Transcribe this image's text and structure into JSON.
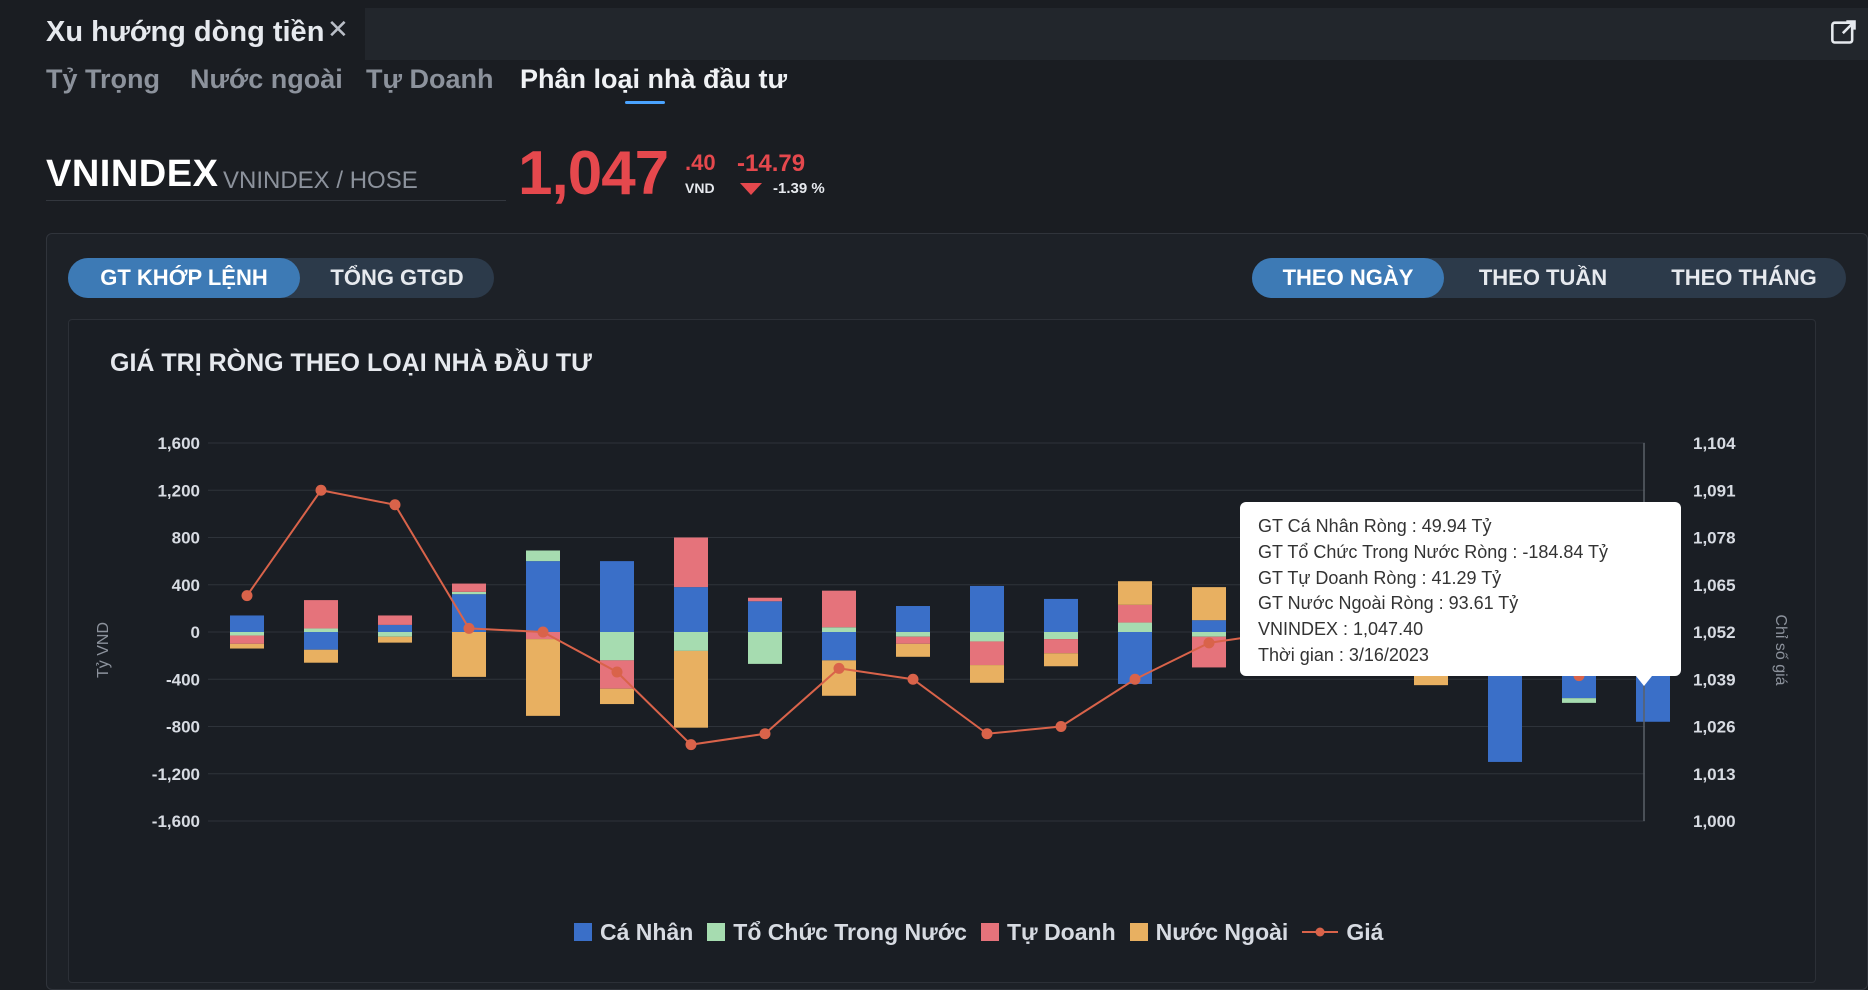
{
  "window": {
    "title": "Xu hướng dòng tiền",
    "close_glyph": "✕",
    "popout_icon": "external-link-icon"
  },
  "subtabs": [
    {
      "label": "Tỷ Trọng"
    },
    {
      "label": "Nước ngoài"
    },
    {
      "label": "Tự Doanh"
    },
    {
      "label": "Phân loại nhà đầu tư"
    }
  ],
  "active_subtab": "Phân loại nhà đầu tư",
  "ticker": {
    "symbol": "VNINDEX",
    "sub": "VNINDEX / HOSE",
    "price_int": "1,047",
    "price_dec": ".40",
    "unit": "VND",
    "change": "-14.79",
    "change_pct": "-1.39 %",
    "color_down": "#e5484d"
  },
  "value_toggle": {
    "options": [
      "GT KHỚP LỆNH",
      "TỔNG GTGD"
    ],
    "selected": "GT KHỚP LỆNH"
  },
  "period_toggle": {
    "options": [
      "THEO NGÀY",
      "THEO TUẦN",
      "THEO THÁNG"
    ],
    "selected": "THEO NGÀY"
  },
  "chart_data": {
    "type": "bar",
    "title": "GIÁ TRỊ RÒNG THEO LOẠI NHÀ ĐẦU TƯ",
    "ylabel": "Tỷ VND",
    "y2label": "Chỉ số giá",
    "ylim": [
      -1600,
      1600
    ],
    "y_ticks": [
      "1,600",
      "1,200",
      "800",
      "400",
      "0",
      "-400",
      "-800",
      "-1,200",
      "-1,600"
    ],
    "y2lim": [
      1000,
      1104
    ],
    "y2_ticks": [
      "1,104",
      "1,091",
      "1,078",
      "1,065",
      "1,052",
      "1,039",
      "1,026",
      "1,013",
      "1,000"
    ],
    "stacked": true,
    "n_days": 20,
    "series": [
      {
        "name": "Cá Nhân",
        "color": "#3a6fc8",
        "values": [
          140,
          -150,
          60,
          320,
          600,
          600,
          380,
          260,
          -240,
          220,
          390,
          280,
          -440,
          100,
          150,
          0,
          -80,
          -1100,
          -560,
          -760
        ]
      },
      {
        "name": "Tổ Chức Trong Nước",
        "color": "#a6dcb0",
        "values": [
          -30,
          30,
          -40,
          20,
          90,
          -240,
          -160,
          -270,
          40,
          -40,
          -80,
          -60,
          80,
          -40,
          0,
          0,
          -50,
          0,
          -40,
          0
        ]
      },
      {
        "name": "Tự Doanh",
        "color": "#e5737b",
        "values": [
          -70,
          240,
          80,
          70,
          -60,
          -240,
          420,
          30,
          310,
          -60,
          -200,
          -120,
          150,
          -260,
          0,
          0,
          -160,
          0,
          50,
          0
        ]
      },
      {
        "name": "Nước Ngoài",
        "color": "#e8b061",
        "values": [
          -40,
          -110,
          -50,
          -380,
          -650,
          -130,
          -650,
          0,
          -300,
          -110,
          -150,
          -110,
          200,
          280,
          0,
          0,
          -160,
          0,
          40,
          0
        ]
      }
    ],
    "line": {
      "name": "Giá",
      "color": "#d9634a",
      "values": [
        1062,
        1091,
        1087,
        1053,
        1052,
        1041,
        1021,
        1024,
        1042,
        1039,
        1024,
        1026,
        1039,
        1049,
        1052,
        1053,
        1050,
        1047,
        1040,
        1047
      ]
    },
    "tooltip": {
      "lines": [
        "GT Cá Nhân Ròng  : 49.94 Tỷ",
        "GT Tổ Chức Trong Nước Ròng : -184.84 Tỷ",
        "GT Tự Doanh Ròng : 41.29 Tỷ",
        "GT Nước Ngoài Ròng : 93.61 Tỷ",
        "VNINDEX : 1,047.40",
        "Thời gian : 3/16/2023"
      ]
    },
    "legend_position": "bottom"
  }
}
